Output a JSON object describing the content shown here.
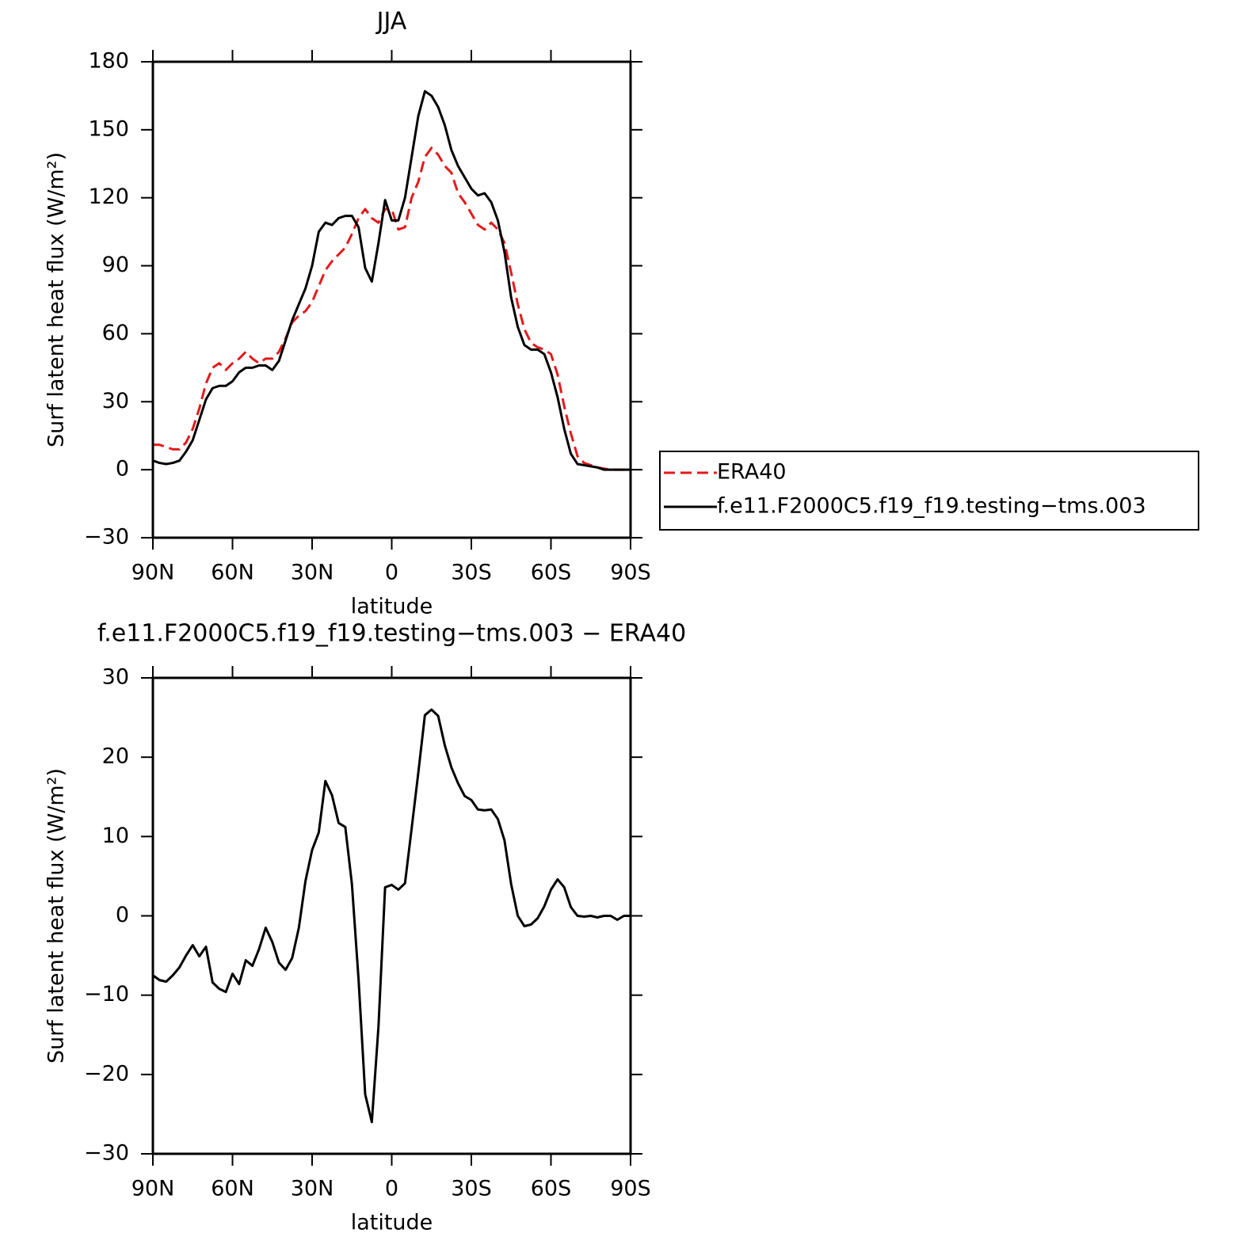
{
  "chart_data": [
    {
      "type": "line",
      "title": "JJA",
      "xlabel": "latitude",
      "ylabel": "Surf latent heat flux (W/m²)",
      "x": [
        90,
        87.5,
        85,
        82.5,
        80,
        77.5,
        75,
        72.5,
        70,
        67.5,
        65,
        62.5,
        60,
        57.5,
        55,
        52.5,
        50,
        47.5,
        45,
        42.5,
        40,
        37.5,
        35,
        32.5,
        30,
        27.5,
        25,
        22.5,
        20,
        17.5,
        15,
        12.5,
        10,
        7.5,
        5,
        2.5,
        0,
        -2.5,
        -5,
        -7.5,
        -10,
        -12.5,
        -15,
        -17.5,
        -20,
        -22.5,
        -25,
        -27.5,
        -30,
        -32.5,
        -35,
        -37.5,
        -40,
        -42.5,
        -45,
        -47.5,
        -50,
        -52.5,
        -55,
        -57.5,
        -60,
        -62.5,
        -65,
        -67.5,
        -70,
        -72.5,
        -75,
        -77.5,
        -80,
        -82.5,
        -85,
        -87.5,
        -90
      ],
      "series": [
        {
          "name": "ERA40",
          "color": "#e41a1c",
          "dashed": true,
          "values": [
            11,
            11,
            10,
            9,
            9,
            12,
            18,
            27,
            38,
            45,
            47,
            44,
            47,
            49,
            52,
            49,
            47,
            49,
            49,
            52,
            58,
            65,
            68,
            70,
            74,
            81,
            88,
            92,
            95,
            98,
            104,
            111,
            115,
            111,
            109,
            115,
            115,
            106,
            107,
            120,
            127,
            138,
            142,
            139,
            134,
            131,
            122,
            118,
            113,
            108,
            106,
            109,
            106,
            100,
            87,
            73,
            62,
            56,
            54,
            53,
            51,
            42,
            28,
            16,
            6,
            3,
            2,
            1,
            0.5,
            0,
            0,
            0,
            0
          ]
        },
        {
          "name": "f.e11.F2000C5.f19_f19.testing−tms.003",
          "color": "#000000",
          "dashed": false,
          "values": [
            4,
            3,
            2.5,
            3,
            4,
            8,
            13,
            22,
            31,
            36,
            37,
            37,
            39,
            43,
            45,
            45,
            46,
            46,
            44,
            48,
            57,
            66,
            73,
            80,
            90,
            105,
            109,
            108,
            111,
            112,
            112,
            107,
            89,
            83,
            100,
            119,
            110,
            110,
            120,
            138,
            156,
            167,
            165,
            160,
            152,
            141,
            134,
            129,
            124,
            121,
            122,
            118,
            110,
            96,
            76,
            63,
            55,
            53,
            53,
            51,
            43,
            32,
            18,
            7,
            2.5,
            2,
            1.5,
            1,
            0,
            0,
            0,
            0,
            0
          ]
        }
      ],
      "xlim": [
        90,
        -90
      ],
      "xticks": [
        {
          "value": 90,
          "label": "90N"
        },
        {
          "value": 60,
          "label": "60N"
        },
        {
          "value": 30,
          "label": "30N"
        },
        0,
        {
          "value": -30,
          "label": "30S"
        },
        {
          "value": -60,
          "label": "60S"
        },
        {
          "value": -90,
          "label": "90S"
        }
      ],
      "ylim": [
        -30,
        180
      ],
      "yticks": [
        {
          "value": -30,
          "label": "−30"
        },
        0,
        30,
        60,
        90,
        120,
        150,
        180
      ],
      "legend": "right"
    },
    {
      "type": "line",
      "title": "f.e11.F2000C5.f19_f19.testing−tms.003 − ERA40",
      "xlabel": "latitude",
      "ylabel": "Surf latent heat flux (W/m²)",
      "x": [
        90,
        87.5,
        85,
        82.5,
        80,
        77.5,
        75,
        72.5,
        70,
        67.5,
        65,
        62.5,
        60,
        57.5,
        55,
        52.5,
        50,
        47.5,
        45,
        42.5,
        40,
        37.5,
        35,
        32.5,
        30,
        27.5,
        25,
        22.5,
        20,
        17.5,
        15,
        12.5,
        10,
        7.5,
        5,
        2.5,
        0,
        -2.5,
        -5,
        -7.5,
        -10,
        -12.5,
        -15,
        -17.5,
        -20,
        -22.5,
        -25,
        -27.5,
        -30,
        -32.5,
        -35,
        -37.5,
        -40,
        -42.5,
        -45,
        -47.5,
        -50,
        -52.5,
        -55,
        -57.5,
        -60,
        -62.5,
        -65,
        -67.5,
        -70,
        -72.5,
        -75,
        -77.5,
        -80,
        -82.5,
        -85,
        -87.5,
        -90
      ],
      "series": [
        {
          "color": "#000000",
          "dashed": false,
          "values": [
            -7.5,
            -8.1,
            -8.3,
            -7.5,
            -6.5,
            -5,
            -3.7,
            -5.1,
            -3.9,
            -8.4,
            -9.2,
            -9.6,
            -7.3,
            -8.6,
            -5.6,
            -6.3,
            -4.2,
            -1.5,
            -3.3,
            -5.9,
            -6.8,
            -5.3,
            -1.5,
            4.4,
            8.3,
            10.5,
            17,
            15.2,
            11.7,
            11.2,
            4,
            -8,
            -22.5,
            -26,
            -14,
            3.6,
            3.9,
            3.3,
            4.1,
            11,
            18,
            25.3,
            26,
            25.2,
            21.5,
            18.7,
            16.7,
            15.1,
            14.6,
            13.4,
            13.3,
            13.4,
            12.2,
            9.5,
            4,
            0,
            -1.3,
            -1.1,
            -0.3,
            1.2,
            3.3,
            4.6,
            3.6,
            1.1,
            0,
            -0.1,
            0,
            -0.2,
            0,
            0,
            -0.5,
            0,
            0
          ]
        }
      ],
      "xlim": [
        90,
        -90
      ],
      "xticks": [
        {
          "value": 90,
          "label": "90N"
        },
        {
          "value": 60,
          "label": "60N"
        },
        {
          "value": 30,
          "label": "30N"
        },
        0,
        {
          "value": -30,
          "label": "30S"
        },
        {
          "value": -60,
          "label": "60S"
        },
        {
          "value": -90,
          "label": "90S"
        }
      ],
      "ylim": [
        -30,
        30
      ],
      "yticks": [
        {
          "value": -30,
          "label": "−30"
        },
        {
          "value": -20,
          "label": "−20"
        },
        {
          "value": -10,
          "label": "−10"
        },
        0,
        10,
        20,
        30
      ]
    }
  ]
}
